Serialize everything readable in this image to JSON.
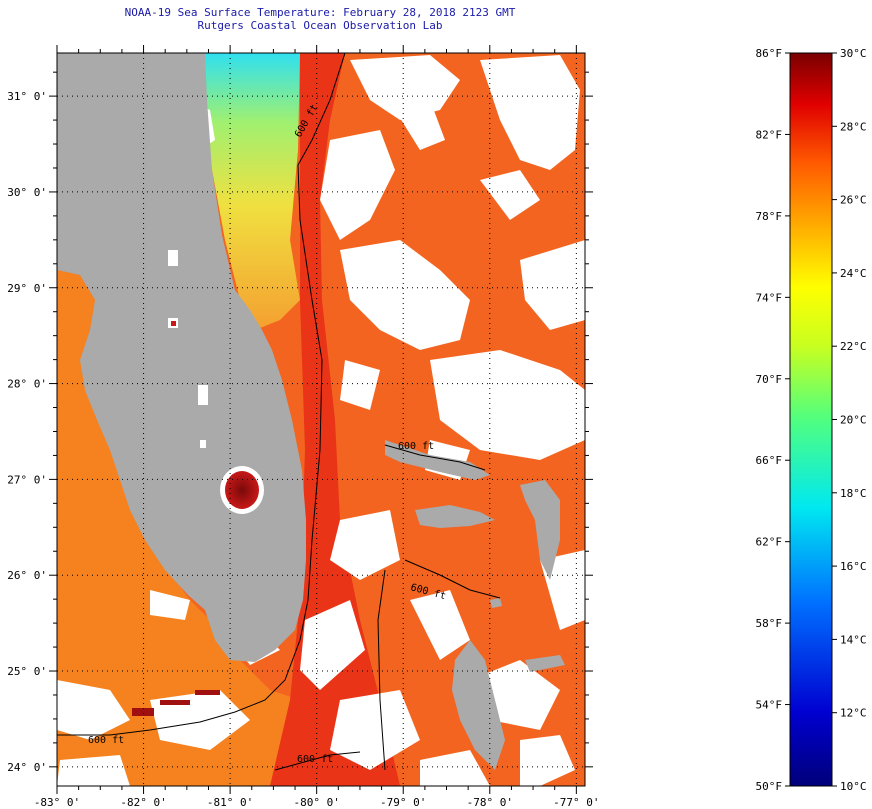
{
  "header": {
    "title_line1": "NOAA-19 Sea Surface Temperature:  February 28, 2018 2123 GMT",
    "title_line2": "Rutgers Coastal Ocean Observation Lab"
  },
  "map": {
    "lon_range": [
      -83,
      -76.9
    ],
    "lat_range": [
      23.8,
      31.45
    ],
    "lat_ticks": [
      {
        "value": 31,
        "label": "31° 0'"
      },
      {
        "value": 30,
        "label": "30° 0'"
      },
      {
        "value": 29,
        "label": "29° 0'"
      },
      {
        "value": 28,
        "label": "28° 0'"
      },
      {
        "value": 27,
        "label": "27° 0'"
      },
      {
        "value": 26,
        "label": "26° 0'"
      },
      {
        "value": 25,
        "label": "25° 0'"
      },
      {
        "value": 24,
        "label": "24° 0'"
      }
    ],
    "lon_ticks": [
      {
        "value": -83,
        "label": "-83° 0'"
      },
      {
        "value": -82,
        "label": "-82° 0'"
      },
      {
        "value": -81,
        "label": "-81° 0'"
      },
      {
        "value": -80,
        "label": "-80° 0'"
      },
      {
        "value": -79,
        "label": "-79° 0'"
      },
      {
        "value": -78,
        "label": "-78° 0'"
      },
      {
        "value": -77,
        "label": "-77° 0'"
      }
    ],
    "contour_labels": [
      "600 ft",
      "600 ft",
      "600 ft",
      "600 ft",
      "600 ft"
    ],
    "colors": {
      "land": "#aaaaaa",
      "cloud": "#ffffff",
      "gulf": "#f5731f",
      "gulf_stream": "#ea3418",
      "atlantic": "#f26420",
      "coastal_north": "#f0c030",
      "cold_shelf": "#37d8e8",
      "lake": "#a01010",
      "grid": "#000000"
    }
  },
  "colorbar": {
    "f_labels": [
      "86°F",
      "82°F",
      "78°F",
      "74°F",
      "70°F",
      "66°F",
      "62°F",
      "58°F",
      "54°F",
      "50°F"
    ],
    "f_values": [
      86,
      82,
      78,
      74,
      70,
      66,
      62,
      58,
      54,
      50
    ],
    "c_labels": [
      "30°C",
      "28°C",
      "26°C",
      "24°C",
      "22°C",
      "20°C",
      "18°C",
      "16°C",
      "14°C",
      "12°C",
      "10°C"
    ],
    "c_values": [
      30,
      28,
      26,
      24,
      22,
      20,
      18,
      16,
      14,
      12,
      10
    ],
    "range_c": [
      10,
      30
    ]
  }
}
